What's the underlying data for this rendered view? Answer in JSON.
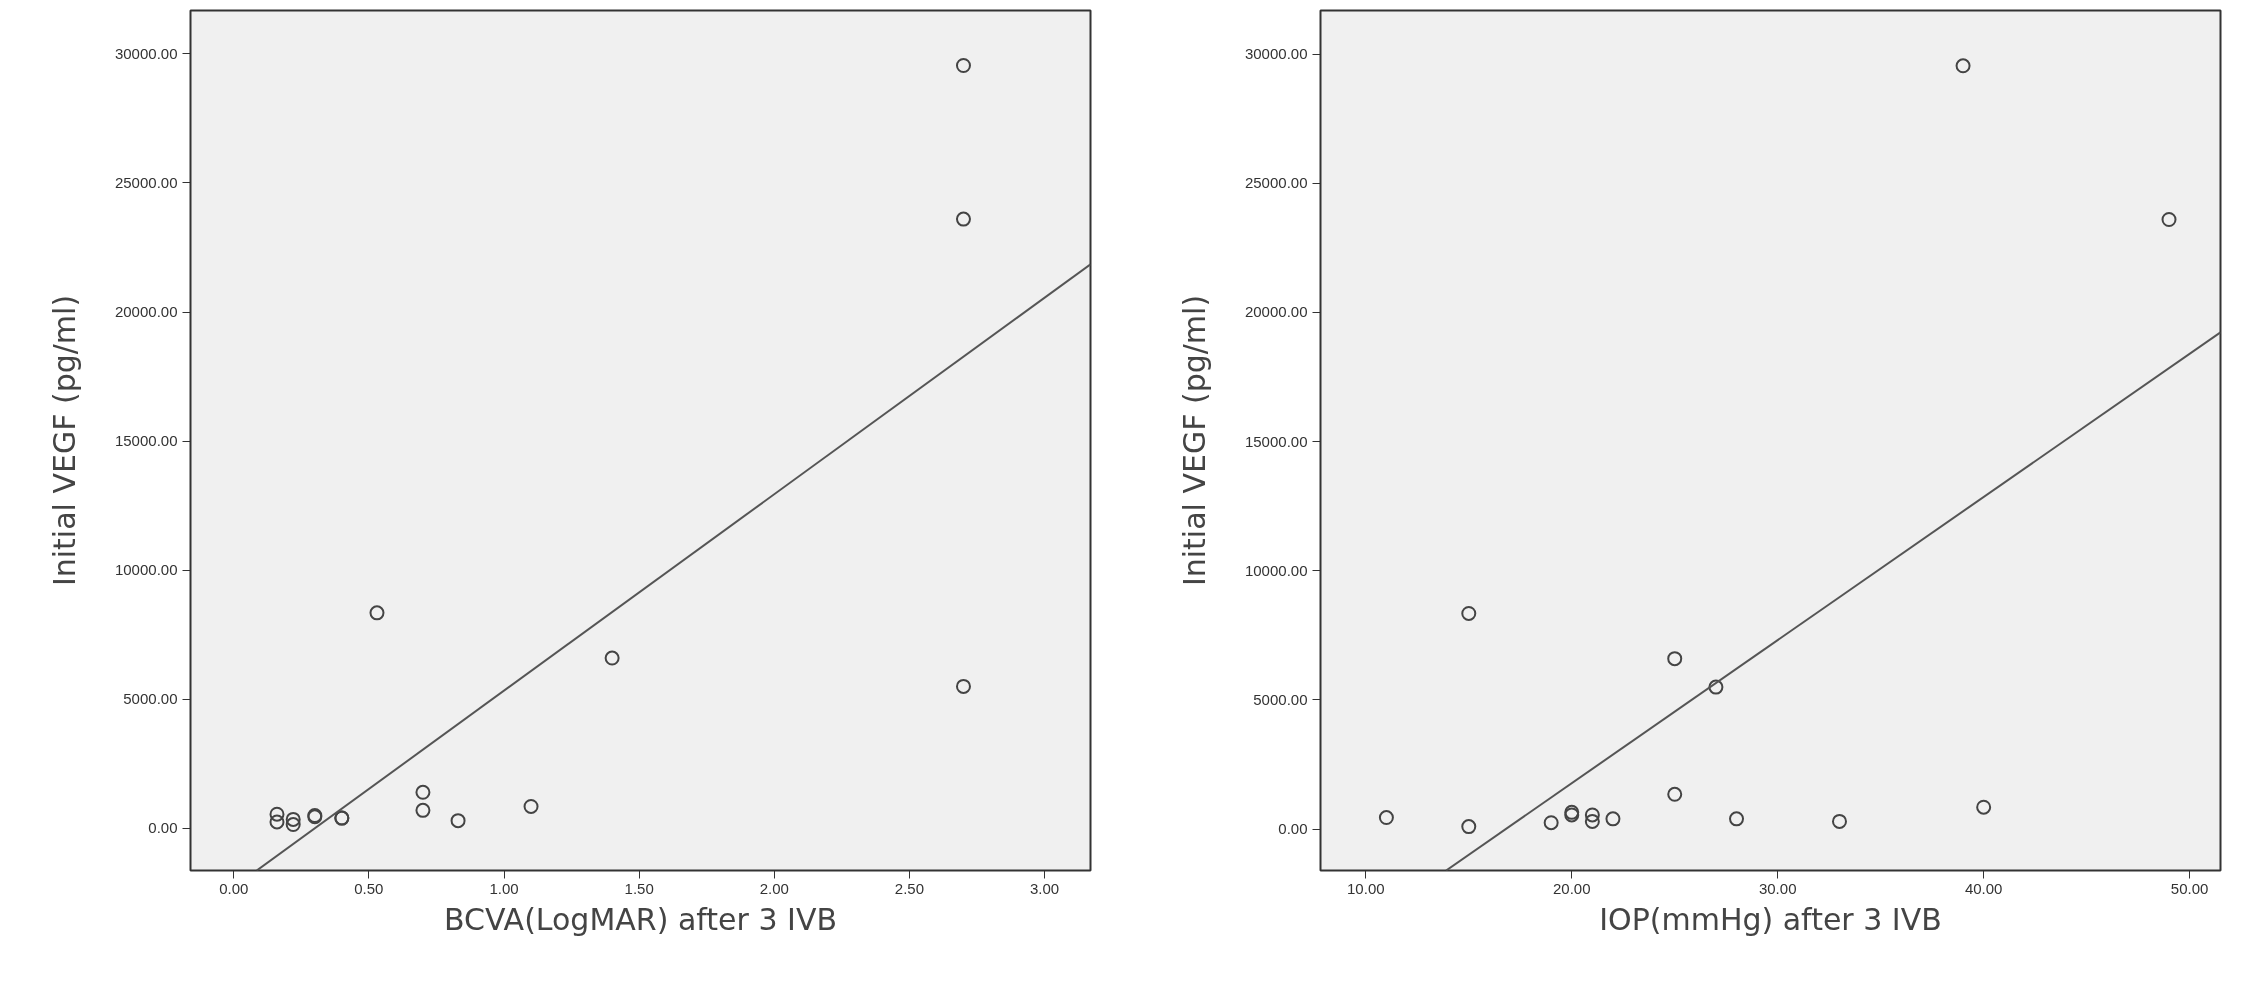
{
  "chart_data": [
    {
      "type": "scatter",
      "xlabel": "BCVA(LogMAR) after 3 IVB",
      "ylabel": "Initial VEGF (pg/ml)",
      "grid": false,
      "xlim": [
        -0.16,
        3.17
      ],
      "ylim": [
        -1630,
        31680
      ],
      "xticks": [
        {
          "value": 0,
          "label": "0.00"
        },
        {
          "value": 0.5,
          "label": "0.50"
        },
        {
          "value": 1,
          "label": "1.00"
        },
        {
          "value": 1.5,
          "label": "1.50"
        },
        {
          "value": 2,
          "label": "2.00"
        },
        {
          "value": 2.5,
          "label": "2.50"
        },
        {
          "value": 3,
          "label": "3.00"
        }
      ],
      "yticks": [
        {
          "value": 0,
          "label": "0.00"
        },
        {
          "value": 5000,
          "label": "5000.00"
        },
        {
          "value": 10000,
          "label": "10000.00"
        },
        {
          "value": 15000,
          "label": "15000.00"
        },
        {
          "value": 20000,
          "label": "20000.00"
        },
        {
          "value": 25000,
          "label": "25000.00"
        },
        {
          "value": 30000,
          "label": "30000.00"
        }
      ],
      "series": [
        {
          "marker": "circle",
          "color": "#444444",
          "x": [
            2.7,
            2.7,
            2.7,
            1.4,
            0.53,
            0.7,
            0.7,
            0.83,
            1.1,
            0.16,
            0.16,
            0.22,
            0.22,
            0.3,
            0.3,
            0.4,
            0.4
          ],
          "values": [
            29550,
            23600,
            5500,
            6600,
            8350,
            1400,
            700,
            300,
            850,
            550,
            250,
            350,
            150,
            500,
            450,
            400,
            400
          ]
        },
        {
          "type": "line",
          "color": "#555555",
          "x": [
            0.085,
            3.17
          ],
          "values": [
            -1630,
            21850
          ]
        }
      ]
    },
    {
      "type": "scatter",
      "xlabel": "IOP(mmHg) after 3 IVB",
      "ylabel": "Initial VEGF (pg/ml)",
      "grid": false,
      "xlim": [
        7.8,
        51.5
      ],
      "ylim": [
        -1600,
        31690
      ],
      "xticks": [
        {
          "value": 10,
          "label": "10.00"
        },
        {
          "value": 20,
          "label": "20.00"
        },
        {
          "value": 30,
          "label": "30.00"
        },
        {
          "value": 40,
          "label": "40.00"
        },
        {
          "value": 50,
          "label": "50.00"
        }
      ],
      "yticks": [
        {
          "value": 0,
          "label": "0.00"
        },
        {
          "value": 5000,
          "label": "5000.00"
        },
        {
          "value": 10000,
          "label": "10000.00"
        },
        {
          "value": 15000,
          "label": "15000.00"
        },
        {
          "value": 20000,
          "label": "20000.00"
        },
        {
          "value": 25000,
          "label": "25000.00"
        },
        {
          "value": 30000,
          "label": "30000.00"
        }
      ],
      "series": [
        {
          "marker": "circle",
          "color": "#444444",
          "x": [
            39,
            49,
            15,
            25,
            27,
            25,
            40,
            11,
            15,
            19,
            20,
            20,
            21,
            21,
            22,
            28,
            33
          ],
          "values": [
            29550,
            23600,
            8350,
            6600,
            5500,
            1350,
            850,
            450,
            100,
            250,
            650,
            550,
            550,
            300,
            400,
            400,
            300
          ]
        },
        {
          "type": "line",
          "color": "#555555",
          "x": [
            13.9,
            51.5
          ],
          "values": [
            -1600,
            19230
          ]
        }
      ]
    }
  ]
}
